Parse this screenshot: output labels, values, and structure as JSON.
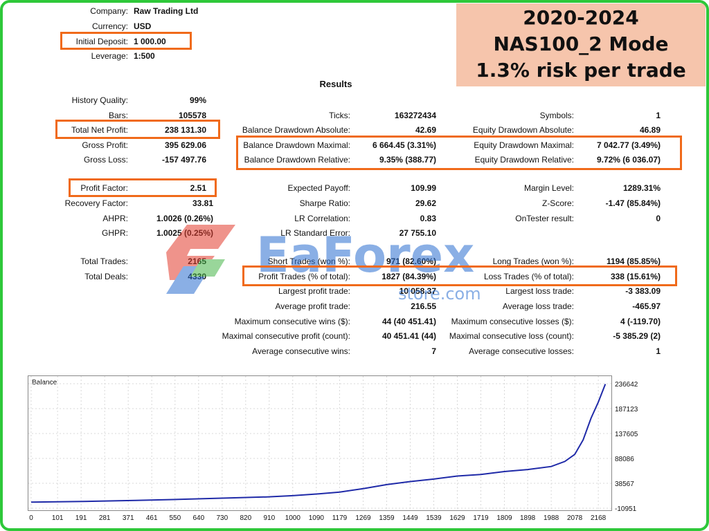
{
  "header": {
    "company_label": "Company:",
    "company_value": "Raw Trading Ltd",
    "currency_label": "Currency:",
    "currency_value": "USD",
    "deposit_label": "Initial Deposit:",
    "deposit_value": "1 000.00",
    "leverage_label": "Leverage:",
    "leverage_value": "1:500"
  },
  "banner": {
    "line1": "2020-2024",
    "line2": "NAS100_2 Mode",
    "line3": "1.3% risk per trade"
  },
  "results_title": "Results",
  "col1": {
    "history_quality_label": "History Quality:",
    "history_quality_value": "99%",
    "bars_label": "Bars:",
    "bars_value": "105578",
    "net_profit_label": "Total Net Profit:",
    "net_profit_value": "238 131.30",
    "gross_profit_label": "Gross Profit:",
    "gross_profit_value": "395 629.06",
    "gross_loss_label": "Gross Loss:",
    "gross_loss_value": "-157 497.76",
    "profit_factor_label": "Profit Factor:",
    "profit_factor_value": "2.51",
    "recovery_label": "Recovery Factor:",
    "recovery_value": "33.81",
    "ahpr_label": "AHPR:",
    "ahpr_value": "1.0026 (0.26%)",
    "ghpr_label": "GHPR:",
    "ghpr_value": "1.0025 (0.25%)",
    "total_trades_label": "Total Trades:",
    "total_trades_value": "2165",
    "total_deals_label": "Total Deals:",
    "total_deals_value": "4330"
  },
  "col2": {
    "ticks_label": "Ticks:",
    "ticks_value": "163272434",
    "bdd_abs_label": "Balance Drawdown Absolute:",
    "bdd_abs_value": "42.69",
    "bdd_max_label": "Balance Drawdown Maximal:",
    "bdd_max_value": "6 664.45 (3.31%)",
    "bdd_rel_label": "Balance Drawdown Relative:",
    "bdd_rel_value": "9.35% (388.77)",
    "exp_payoff_label": "Expected Payoff:",
    "exp_payoff_value": "109.99",
    "sharpe_label": "Sharpe Ratio:",
    "sharpe_value": "29.62",
    "lr_corr_label": "LR Correlation:",
    "lr_corr_value": "0.83",
    "lr_err_label": "LR Standard Error:",
    "lr_err_value": "27 755.10",
    "short_label": "Short Trades (won %):",
    "short_value": "971 (82.60%)",
    "profit_trades_label": "Profit Trades (% of total):",
    "profit_trades_value": "1827 (84.39%)",
    "largest_profit_label": "Largest profit trade:",
    "largest_profit_value": "10 058.37",
    "avg_profit_label": "Average profit trade:",
    "avg_profit_value": "216.55",
    "max_cons_wins_label": "Maximum consecutive wins ($):",
    "max_cons_wins_value": "44 (40 451.41)",
    "maximal_cons_profit_label": "Maximal consecutive profit (count):",
    "maximal_cons_profit_value": "40 451.41 (44)",
    "avg_cons_wins_label": "Average consecutive wins:",
    "avg_cons_wins_value": "7"
  },
  "col3": {
    "symbols_label": "Symbols:",
    "symbols_value": "1",
    "edd_abs_label": "Equity Drawdown Absolute:",
    "edd_abs_value": "46.89",
    "edd_max_label": "Equity Drawdown Maximal:",
    "edd_max_value": "7 042.77 (3.49%)",
    "edd_rel_label": "Equity Drawdown Relative:",
    "edd_rel_value": "9.72% (6 036.07)",
    "margin_label": "Margin Level:",
    "margin_value": "1289.31%",
    "zscore_label": "Z-Score:",
    "zscore_value": "-1.47 (85.84%)",
    "ontester_label": "OnTester result:",
    "ontester_value": "0",
    "long_label": "Long Trades (won %):",
    "long_value": "1194 (85.85%)",
    "loss_trades_label": "Loss Trades (% of total):",
    "loss_trades_value": "338 (15.61%)",
    "largest_loss_label": "Largest loss trade:",
    "largest_loss_value": "-3 383.09",
    "avg_loss_label": "Average loss trade:",
    "avg_loss_value": "-465.97",
    "max_cons_losses_label": "Maximum consecutive losses ($):",
    "max_cons_losses_value": "4 (-119.70)",
    "maximal_cons_loss_label": "Maximal consecutive loss (count):",
    "maximal_cons_loss_value": "-5 385.29 (2)",
    "avg_cons_losses_label": "Average consecutive losses:",
    "avg_cons_losses_value": "1"
  },
  "watermark": {
    "brand": "EaForex",
    "sub": "store.com"
  },
  "chart_data": {
    "type": "line",
    "title": "Balance",
    "x_ticks": [
      "0",
      "101",
      "191",
      "281",
      "371",
      "461",
      "550",
      "640",
      "730",
      "820",
      "910",
      "1000",
      "1090",
      "1179",
      "1269",
      "1359",
      "1449",
      "1539",
      "1629",
      "1719",
      "1809",
      "1898",
      "1988",
      "2078",
      "2168"
    ],
    "y_ticks": [
      "236642",
      "187123",
      "137605",
      "88086",
      "38567",
      "-10951"
    ],
    "ylim": [
      -10951,
      236642
    ],
    "xlim": [
      0,
      2210
    ],
    "grid": true,
    "series": [
      {
        "color": "#1f2aa8",
        "x": [
          0,
          200,
          400,
          600,
          800,
          900,
          1000,
          1100,
          1179,
          1269,
          1359,
          1449,
          1539,
          1629,
          1719,
          1809,
          1898,
          1988,
          2040,
          2078,
          2110,
          2140,
          2168,
          2195
        ],
        "y": [
          1000,
          2500,
          4500,
          7000,
          10000,
          11500,
          14000,
          17500,
          21000,
          28000,
          36000,
          42000,
          47000,
          53000,
          56000,
          62000,
          66000,
          72000,
          82000,
          96000,
          125000,
          168000,
          200000,
          236000
        ]
      }
    ]
  }
}
